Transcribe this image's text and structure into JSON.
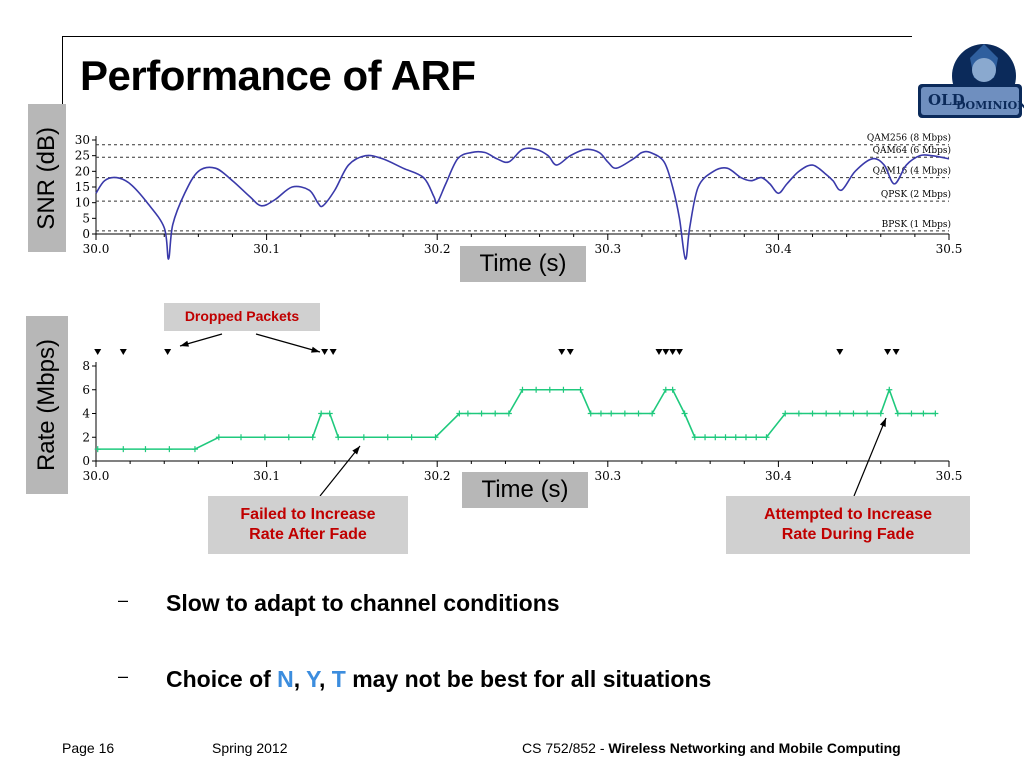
{
  "slide": {
    "title": "Performance of ARF",
    "snr_axis_label": "SNR (dB)",
    "rate_axis_label": "Rate (Mbps)",
    "time_label_top": "Time (s)",
    "time_label_bottom": "Time (s)"
  },
  "callouts": {
    "dropped": "Dropped Packets",
    "failed_line1": "Failed to Increase",
    "failed_line2": "Rate After Fade",
    "attempted_line1": "Attempted to Increase",
    "attempted_line2": "Rate During Fade"
  },
  "bullets": {
    "b1": "Slow to adapt to channel conditions",
    "b2_pre": "Choice of ",
    "b2_n": "N",
    "b2_comma1": ", ",
    "b2_y": "Y",
    "b2_comma2": ", ",
    "b2_t": "T",
    "b2_post": " may not be best for all situations",
    "dash": "–"
  },
  "footer": {
    "page": "Page 16",
    "term": "Spring 2012",
    "course_prefix": "CS 752/852 - ",
    "course_name": "Wireless Networking and Mobile Computing"
  },
  "colors": {
    "snr_line": "#3a3aaa",
    "rate_line": "#1fc97d",
    "callout_text": "#c00000",
    "highlight": "#3c8dde",
    "label_box": "#b7b7b7"
  },
  "chart_data": [
    {
      "type": "line",
      "xlim": [
        30.0,
        30.5
      ],
      "ylim": [
        0,
        30
      ],
      "x_ticks": [
        "30.0",
        "30.1",
        "30.2",
        "30.3",
        "30.4",
        "30.5"
      ],
      "y_ticks": [
        "0",
        "5",
        "10",
        "15",
        "20",
        "25",
        "30"
      ],
      "thresholds": [
        {
          "label": "QAM256 (8 Mbps)",
          "value": 28.5
        },
        {
          "label": "QAM64 (6 Mbps)",
          "value": 24.5
        },
        {
          "label": "QAM16 (4 Mbps)",
          "value": 18
        },
        {
          "label": "QPSK (2 Mbps)",
          "value": 10.5
        },
        {
          "label": "BPSK (1 Mbps)",
          "value": 1
        }
      ],
      "series": [
        {
          "x": [
            30.0,
            30.005,
            30.012,
            30.02,
            30.03,
            30.04,
            30.0425,
            30.045,
            30.052,
            30.06,
            30.07,
            30.08,
            30.09,
            30.097,
            30.105,
            30.115,
            30.125,
            30.13,
            30.133,
            30.14,
            30.148,
            30.158,
            30.168,
            30.18,
            30.192,
            30.198,
            30.2,
            30.205,
            30.212,
            30.22,
            30.228,
            30.235,
            30.242,
            30.25,
            30.258,
            30.265,
            30.27,
            30.278,
            30.287,
            30.295,
            30.3,
            30.305,
            30.315,
            30.32,
            30.325,
            30.333,
            30.338,
            30.342,
            30.3455,
            30.348,
            30.353,
            30.362,
            30.37,
            30.378,
            30.384,
            30.39,
            30.395,
            30.4,
            30.405,
            30.412,
            30.42,
            30.428,
            30.432,
            30.437,
            30.445,
            30.455,
            30.462,
            30.468,
            30.475,
            30.483,
            30.49,
            30.5
          ],
          "y": [
            13,
            17,
            18,
            16,
            10,
            2,
            -8,
            3,
            13,
            20,
            21,
            17,
            12,
            9,
            11,
            15,
            14,
            10,
            9,
            14,
            22,
            25,
            24,
            21,
            18,
            12,
            10,
            16,
            24,
            26,
            26,
            24,
            23,
            27,
            27,
            25,
            22,
            25,
            27,
            26,
            23,
            21,
            24,
            26,
            26,
            23,
            15,
            5,
            -8,
            2,
            15,
            20,
            21,
            18,
            17,
            18,
            16,
            13,
            16,
            20,
            22,
            19,
            17,
            14,
            20,
            24,
            22,
            16,
            22,
            25,
            25,
            24
          ]
        }
      ]
    },
    {
      "type": "line",
      "xlim": [
        30.0,
        30.5
      ],
      "ylim": [
        0,
        8
      ],
      "x_ticks": [
        "30.0",
        "30.1",
        "30.2",
        "30.3",
        "30.4",
        "30.5"
      ],
      "y_ticks": [
        "0",
        "2",
        "4",
        "6",
        "8"
      ],
      "dropped_packets_x": [
        30.001,
        30.016,
        30.042,
        30.134,
        30.139,
        30.273,
        30.278,
        30.33,
        30.334,
        30.338,
        30.342,
        30.436,
        30.464,
        30.469
      ],
      "series": [
        {
          "x": [
            30.001,
            30.016,
            30.029,
            30.043,
            30.058,
            30.072,
            30.085,
            30.099,
            30.113,
            30.127,
            30.132,
            30.137,
            30.142,
            30.157,
            30.171,
            30.185,
            30.199,
            30.213,
            30.218,
            30.226,
            30.234,
            30.242,
            30.25,
            30.258,
            30.266,
            30.274,
            30.284,
            30.29,
            30.296,
            30.302,
            30.31,
            30.318,
            30.326,
            30.334,
            30.338,
            30.345,
            30.351,
            30.357,
            30.363,
            30.369,
            30.375,
            30.381,
            30.387,
            30.393,
            30.404,
            30.412,
            30.42,
            30.428,
            30.436,
            30.444,
            30.452,
            30.46,
            30.465,
            30.47,
            30.478,
            30.485,
            30.492
          ],
          "y": [
            1,
            1,
            1,
            1,
            1,
            2,
            2,
            2,
            2,
            2,
            4,
            4,
            2,
            2,
            2,
            2,
            2,
            4,
            4,
            4,
            4,
            4,
            6,
            6,
            6,
            6,
            6,
            4,
            4,
            4,
            4,
            4,
            4,
            6,
            6,
            4,
            2,
            2,
            2,
            2,
            2,
            2,
            2,
            2,
            4,
            4,
            4,
            4,
            4,
            4,
            4,
            4,
            6,
            4,
            4,
            4,
            4
          ]
        }
      ]
    }
  ]
}
